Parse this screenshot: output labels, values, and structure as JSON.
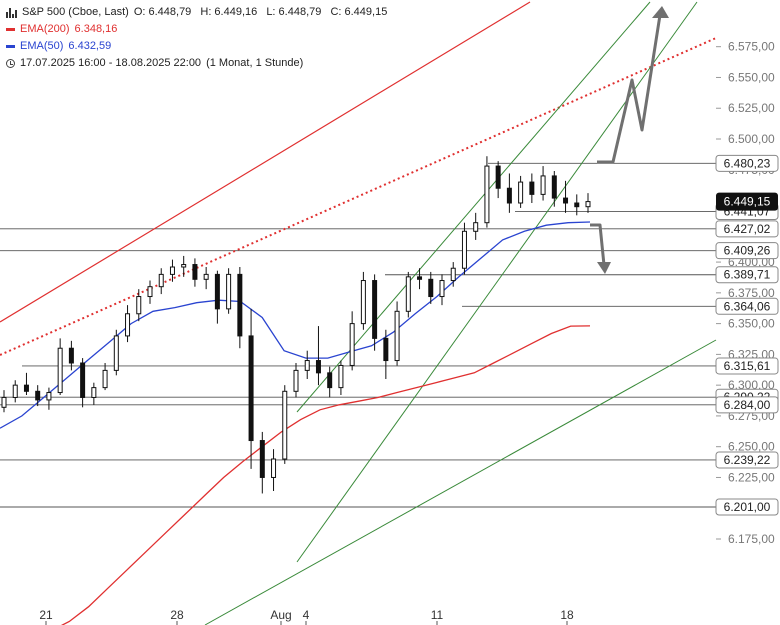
{
  "legend": {
    "symbol": "S&P 500 (Cboe, Last)",
    "open": "O: 6.448,79",
    "high": "H: 6.449,16",
    "low": "L: 6.448,79",
    "close": "C: 6.449,15",
    "ema200_label": "EMA(200)",
    "ema200_value": "6.348,16",
    "ema50_label": "EMA(50)",
    "ema50_value": "6.432,59",
    "range": "17.07.2025 16:00 - 18.08.2025 22:00",
    "interval": "(1 Monat, 1 Stunde)"
  },
  "colors": {
    "ema200": "#e03030",
    "ema50": "#2a44d0",
    "channel": "#3a8a3a",
    "arrow": "#707070",
    "candle": "#111111",
    "level": "#555555",
    "price_tag": "#111111"
  },
  "chart_data": {
    "type": "candlestick",
    "y_range": [
      6175,
      6600
    ],
    "y_ticks": [
      "6.575,00",
      "6.550,00",
      "6.525,00",
      "6.500,00",
      "6.475,00",
      "6.450,00",
      "6.425,00",
      "6.400,00",
      "6.375,00",
      "6.350,00",
      "6.325,00",
      "6.300,00",
      "6.275,00",
      "6.250,00",
      "6.225,00",
      "6.200,00",
      "6.175,00"
    ],
    "x_ticks": [
      "21",
      "28",
      "Aug",
      "4",
      "11",
      "18"
    ],
    "current_price": "6.449,15",
    "levels": [
      {
        "label": "6.480,23"
      },
      {
        "label": "6.441,07"
      },
      {
        "label": "6.427,02"
      },
      {
        "label": "6.409,26"
      },
      {
        "label": "6.389,71"
      },
      {
        "label": "6.364,06"
      },
      {
        "label": "6.315,61"
      },
      {
        "label": "6.290,22"
      },
      {
        "label": "6.284,00"
      },
      {
        "label": "6.239,22"
      },
      {
        "label": "6.201,00"
      }
    ],
    "ema200": [
      6100,
      6108,
      6120,
      6135,
      6150,
      6165,
      6180,
      6195,
      6210,
      6225,
      6238,
      6250,
      6262,
      6272,
      6280,
      6284,
      6287,
      6290,
      6294,
      6298,
      6302,
      6306,
      6310,
      6318,
      6326,
      6334,
      6342,
      6348,
      6348.16
    ],
    "ema50": [
      6265,
      6275,
      6290,
      6305,
      6320,
      6335,
      6350,
      6360,
      6363,
      6367,
      6369,
      6368,
      6355,
      6328,
      6322,
      6322,
      6327,
      6332,
      6343,
      6358,
      6372,
      6388,
      6403,
      6418,
      6425,
      6430,
      6432,
      6432.59
    ],
    "ohlc": [
      [
        6282,
        6296,
        6278,
        6290
      ],
      [
        6290,
        6304,
        6286,
        6300
      ],
      [
        6300,
        6310,
        6292,
        6295
      ],
      [
        6295,
        6300,
        6283,
        6288
      ],
      [
        6288,
        6298,
        6280,
        6294
      ],
      [
        6294,
        6338,
        6292,
        6330
      ],
      [
        6330,
        6336,
        6312,
        6318
      ],
      [
        6318,
        6322,
        6282,
        6290
      ],
      [
        6290,
        6302,
        6284,
        6298
      ],
      [
        6298,
        6318,
        6296,
        6312
      ],
      [
        6312,
        6345,
        6308,
        6340
      ],
      [
        6340,
        6365,
        6335,
        6358
      ],
      [
        6358,
        6378,
        6352,
        6372
      ],
      [
        6372,
        6385,
        6366,
        6380
      ],
      [
        6380,
        6395,
        6374,
        6390
      ],
      [
        6390,
        6402,
        6384,
        6396
      ],
      [
        6396,
        6405,
        6388,
        6398
      ],
      [
        6398,
        6403,
        6380,
        6386
      ],
      [
        6386,
        6396,
        6378,
        6390
      ],
      [
        6390,
        6393,
        6350,
        6362
      ],
      [
        6362,
        6395,
        6358,
        6390
      ],
      [
        6390,
        6396,
        6330,
        6340
      ],
      [
        6340,
        6362,
        6232,
        6255
      ],
      [
        6255,
        6262,
        6212,
        6225
      ],
      [
        6225,
        6248,
        6214,
        6240
      ],
      [
        6240,
        6300,
        6236,
        6295
      ],
      [
        6295,
        6318,
        6290,
        6312
      ],
      [
        6312,
        6328,
        6305,
        6320
      ],
      [
        6320,
        6348,
        6300,
        6310
      ],
      [
        6310,
        6315,
        6290,
        6298
      ],
      [
        6298,
        6320,
        6292,
        6316
      ],
      [
        6316,
        6360,
        6312,
        6350
      ],
      [
        6350,
        6392,
        6345,
        6385
      ],
      [
        6385,
        6390,
        6328,
        6338
      ],
      [
        6338,
        6345,
        6305,
        6320
      ],
      [
        6320,
        6368,
        6316,
        6360
      ],
      [
        6360,
        6392,
        6355,
        6388
      ],
      [
        6388,
        6395,
        6378,
        6386
      ],
      [
        6386,
        6392,
        6366,
        6372
      ],
      [
        6372,
        6390,
        6365,
        6385
      ],
      [
        6385,
        6400,
        6380,
        6395
      ],
      [
        6395,
        6432,
        6390,
        6425
      ],
      [
        6425,
        6440,
        6418,
        6432
      ],
      [
        6432,
        6486,
        6428,
        6478
      ],
      [
        6478,
        6482,
        6452,
        6460
      ],
      [
        6460,
        6472,
        6440,
        6448
      ],
      [
        6448,
        6470,
        6444,
        6465
      ],
      [
        6465,
        6472,
        6448,
        6455
      ],
      [
        6455,
        6478,
        6450,
        6470
      ],
      [
        6470,
        6474,
        6445,
        6452
      ],
      [
        6452,
        6466,
        6440,
        6448
      ],
      [
        6448,
        6455,
        6438,
        6445
      ],
      [
        6445,
        6456,
        6440,
        6449.15
      ]
    ]
  }
}
